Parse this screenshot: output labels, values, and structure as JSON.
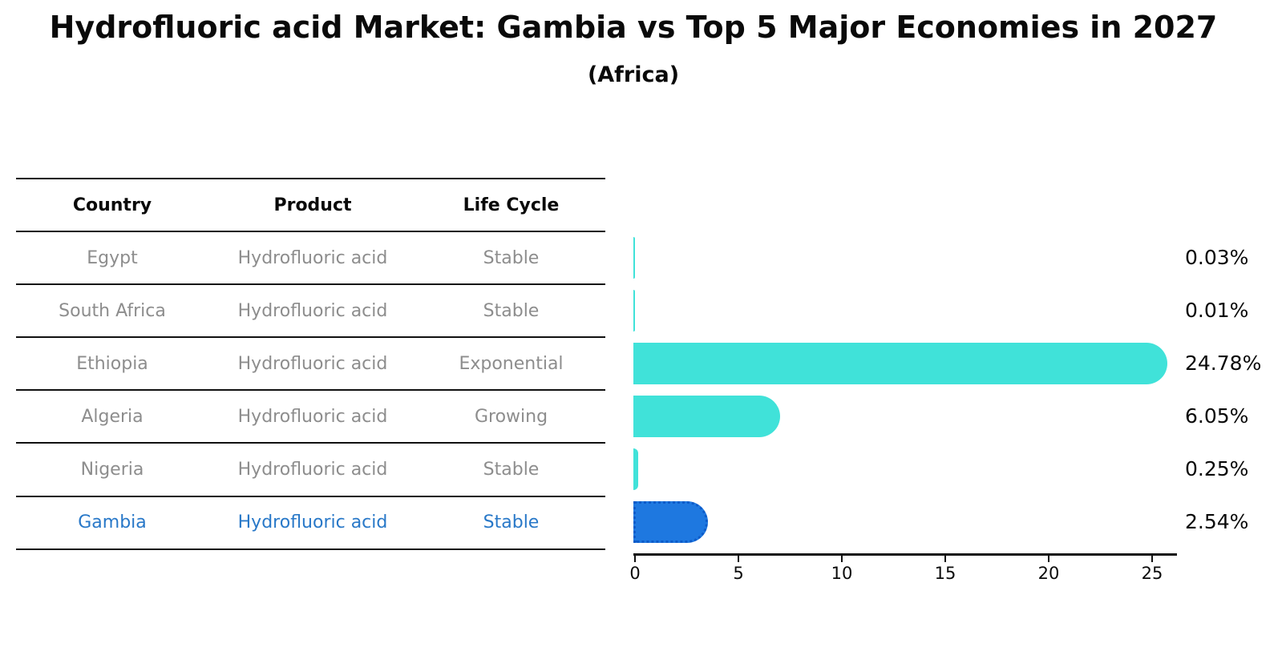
{
  "title": "Hydrofluoric acid Market: Gambia vs Top 5 Major Economies in 2027",
  "subtitle": "(Africa)",
  "table": {
    "headers": {
      "country": "Country",
      "product": "Product",
      "life_cycle": "Life Cycle"
    }
  },
  "rows": [
    {
      "country": "Egypt",
      "product": "Hydrofluoric acid",
      "life_cycle": "Stable",
      "share": "0.03%"
    },
    {
      "country": "South Africa",
      "product": "Hydrofluoric acid",
      "life_cycle": "Stable",
      "share": "0.01%"
    },
    {
      "country": "Ethiopia",
      "product": "Hydrofluoric acid",
      "life_cycle": "Exponential",
      "share": "24.78%"
    },
    {
      "country": "Algeria",
      "product": "Hydrofluoric acid",
      "life_cycle": "Growing",
      "share": "6.05%"
    },
    {
      "country": "Nigeria",
      "product": "Hydrofluoric acid",
      "life_cycle": "Stable",
      "share": "0.25%"
    },
    {
      "country": "Gambia",
      "product": "Hydrofluoric acid",
      "life_cycle": "Stable",
      "share": "2.54%"
    }
  ],
  "chart_data": {
    "type": "bar",
    "orientation": "horizontal",
    "title": "Hydrofluoric acid Market: Gambia vs Top 5 Major Economies in 2027 (Africa)",
    "categories": [
      "Egypt",
      "South Africa",
      "Ethiopia",
      "Algeria",
      "Nigeria",
      "Gambia"
    ],
    "values": [
      0.03,
      0.01,
      24.78,
      6.05,
      0.25,
      2.54
    ],
    "data_labels": [
      "0.03%",
      "0.01%",
      "24.78%",
      "6.05%",
      "0.25%",
      "2.54%"
    ],
    "xlabel": "",
    "ylabel": "",
    "xticks": [
      0,
      5,
      10,
      15,
      20,
      25
    ],
    "xtick_labels": [
      "0",
      "5",
      "10",
      "15",
      "20",
      "25"
    ],
    "xlim": [
      0,
      26.2
    ],
    "grid": false,
    "legend": false,
    "highlight_index": 5
  },
  "colors": {
    "bar": "#40E2D9",
    "highlight_bar": "#1E78E0",
    "highlight_border": "#0d5bc9",
    "highlight_text": "#2878c8",
    "table_text": "#8d8d8d",
    "header_text": "#0a0a0a",
    "axis": "#111111"
  }
}
